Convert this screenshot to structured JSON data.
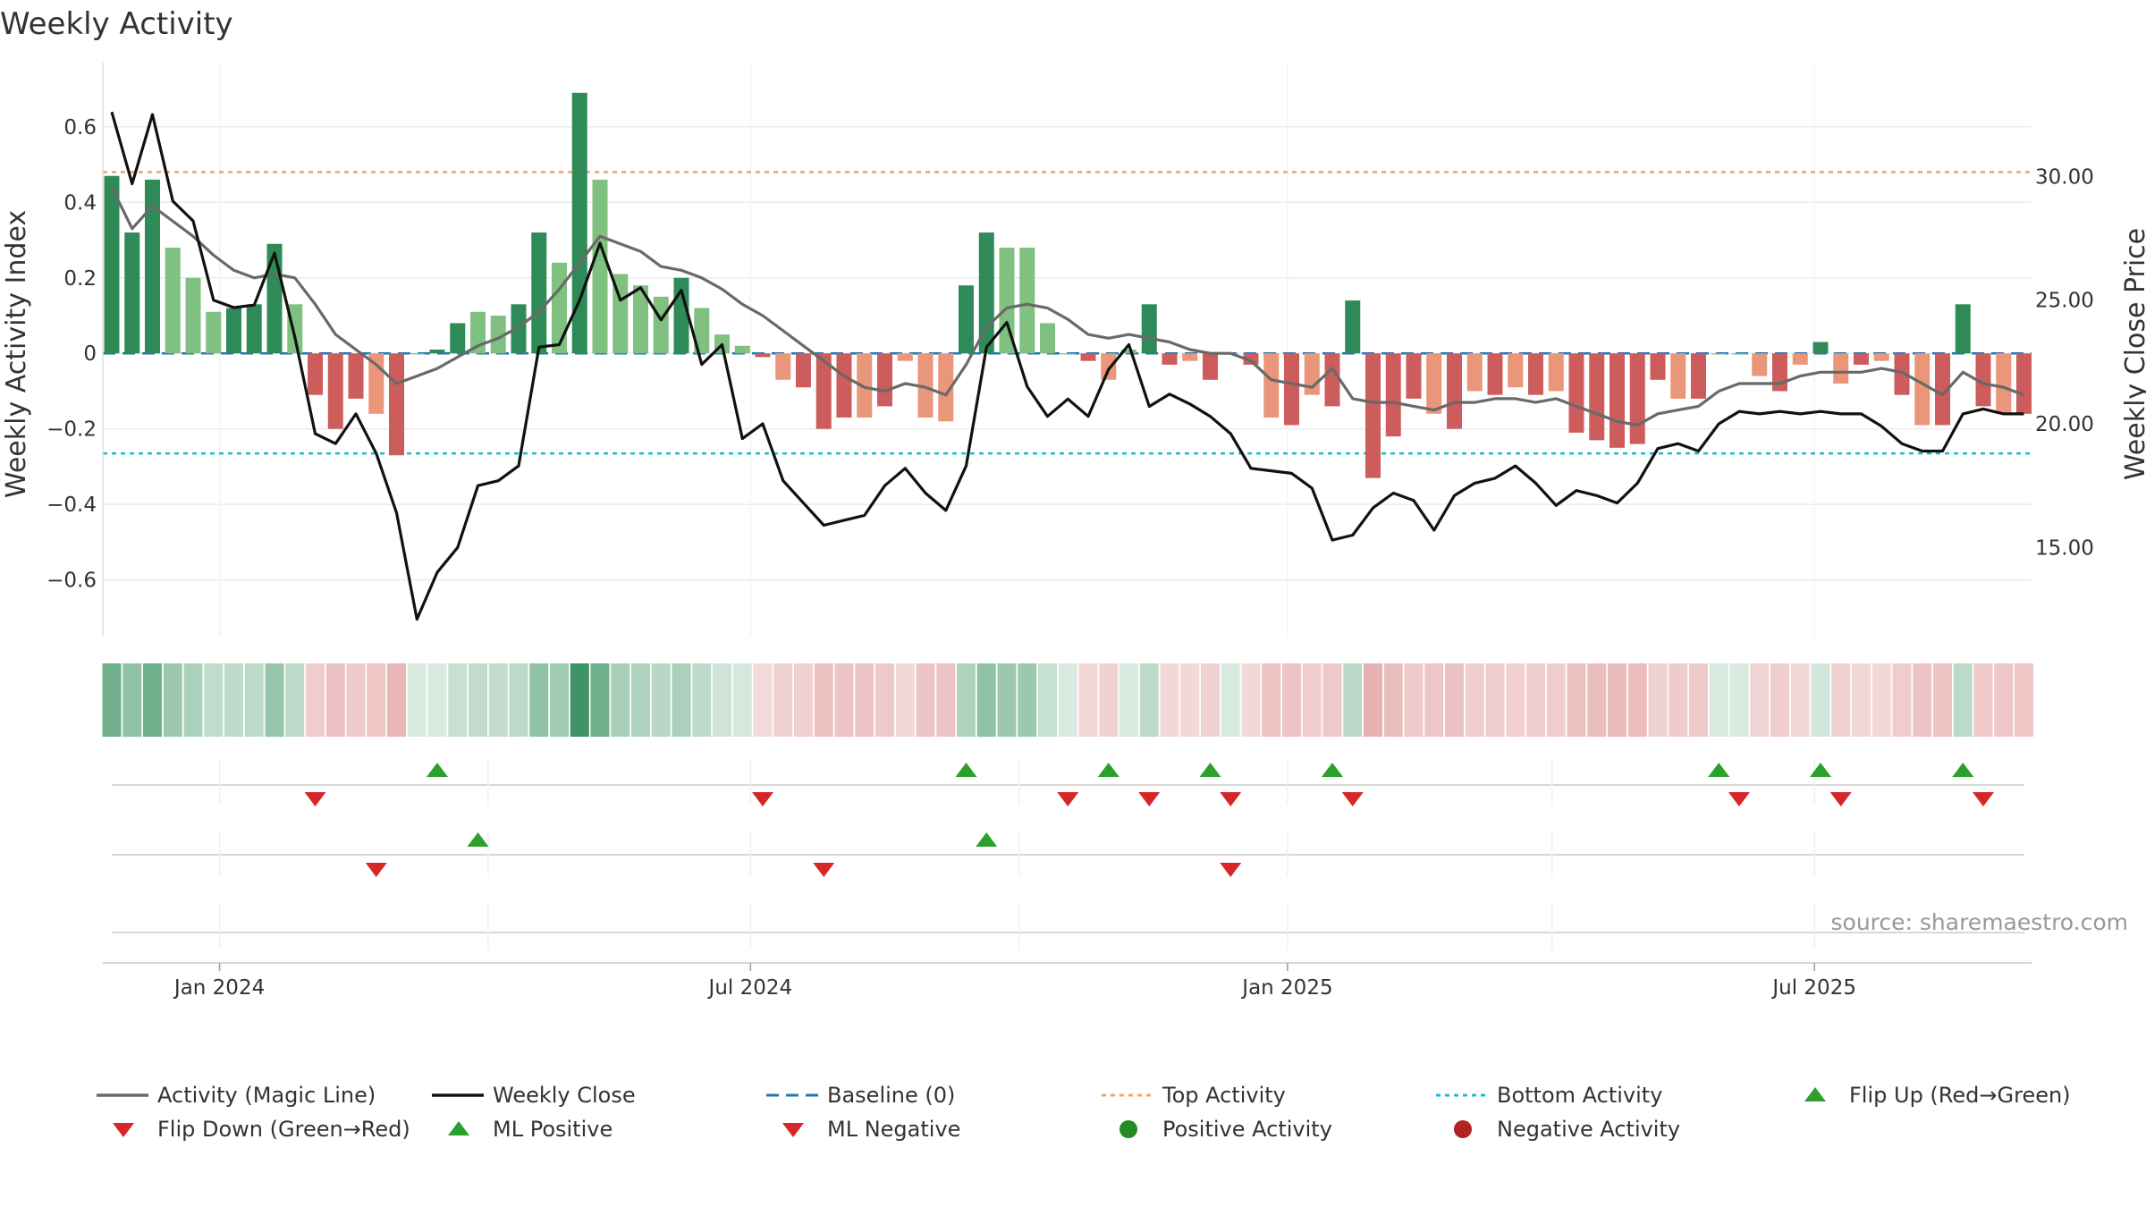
{
  "title": "Weekly Activity",
  "source": "source: sharemaestro.com",
  "chart_data": {
    "type": "bar",
    "title": "Weekly Activity",
    "ylabel": "Weekly Activity Index",
    "y2label": "Weekly Close Price",
    "ylim": [
      -0.75,
      0.77
    ],
    "y2lim": [
      11.4,
      34.6
    ],
    "yticks": [
      {
        "v": 0.6,
        "label": "0.6"
      },
      {
        "v": 0.4,
        "label": "0.4"
      },
      {
        "v": 0.2,
        "label": "0.2"
      },
      {
        "v": 0,
        "label": "0"
      },
      {
        "v": -0.2,
        "label": "−0.2"
      },
      {
        "v": -0.4,
        "label": "−0.4"
      },
      {
        "v": -0.6,
        "label": "−0.6"
      }
    ],
    "y2ticks": [
      {
        "v": 30,
        "label": "30.00"
      },
      {
        "v": 25,
        "label": "25.00"
      },
      {
        "v": 20,
        "label": "20.00"
      },
      {
        "v": 15,
        "label": "15.00"
      }
    ],
    "xticks": [
      {
        "i": 5.3,
        "label": "Jan 2024"
      },
      {
        "i": 31.4,
        "label": "Jul 2024"
      },
      {
        "i": 57.8,
        "label": "Jan 2025"
      },
      {
        "i": 83.7,
        "label": "Jul 2025"
      }
    ],
    "top_activity": 0.48,
    "bottom_activity": -0.265,
    "activity": [
      0.47,
      0.32,
      0.46,
      0.28,
      0.2,
      0.11,
      0.12,
      0.13,
      0.29,
      0.13,
      -0.11,
      -0.2,
      -0.12,
      -0.16,
      -0.27,
      0.0,
      0.01,
      0.08,
      0.11,
      0.1,
      0.13,
      0.32,
      0.24,
      0.69,
      0.46,
      0.21,
      0.18,
      0.15,
      0.2,
      0.12,
      0.05,
      0.02,
      -0.01,
      -0.07,
      -0.09,
      -0.2,
      -0.17,
      -0.17,
      -0.14,
      -0.02,
      -0.17,
      -0.18,
      0.18,
      0.32,
      0.28,
      0.28,
      0.08,
      0.0,
      -0.02,
      -0.07,
      0.01,
      0.13,
      -0.03,
      -0.02,
      -0.07,
      0.0,
      -0.03,
      -0.17,
      -0.19,
      -0.11,
      -0.14,
      0.14,
      -0.33,
      -0.22,
      -0.12,
      -0.16,
      -0.2,
      -0.1,
      -0.11,
      -0.09,
      -0.11,
      -0.1,
      -0.21,
      -0.23,
      -0.25,
      -0.24,
      -0.07,
      -0.12,
      -0.12,
      0.0,
      0.0,
      -0.06,
      -0.1,
      -0.03,
      0.03,
      -0.08,
      -0.03,
      -0.02,
      -0.11,
      -0.19,
      -0.19,
      0.13,
      -0.14,
      -0.16,
      -0.16
    ],
    "magic_line": [
      0.44,
      0.33,
      0.39,
      0.35,
      0.31,
      0.26,
      0.22,
      0.2,
      0.21,
      0.2,
      0.13,
      0.05,
      0.01,
      -0.03,
      -0.08,
      -0.06,
      -0.04,
      -0.01,
      0.02,
      0.04,
      0.07,
      0.11,
      0.17,
      0.24,
      0.31,
      0.29,
      0.27,
      0.23,
      0.22,
      0.2,
      0.17,
      0.13,
      0.1,
      0.06,
      0.02,
      -0.02,
      -0.06,
      -0.09,
      -0.1,
      -0.08,
      -0.09,
      -0.11,
      -0.03,
      0.07,
      0.12,
      0.13,
      0.12,
      0.09,
      0.05,
      0.04,
      0.05,
      0.04,
      0.03,
      0.01,
      0.0,
      0.0,
      -0.02,
      -0.07,
      -0.08,
      -0.09,
      -0.04,
      -0.12,
      -0.13,
      -0.13,
      -0.14,
      -0.15,
      -0.13,
      -0.13,
      -0.12,
      -0.12,
      -0.13,
      -0.12,
      -0.14,
      -0.16,
      -0.18,
      -0.19,
      -0.16,
      -0.15,
      -0.14,
      -0.1,
      -0.08,
      -0.08,
      -0.08,
      -0.06,
      -0.05,
      -0.05,
      -0.05,
      -0.04,
      -0.05,
      -0.08,
      -0.11,
      -0.05,
      -0.08,
      -0.09,
      -0.11
    ],
    "weekly_close": [
      32.6,
      29.7,
      32.5,
      29.0,
      28.2,
      25.0,
      24.7,
      24.8,
      26.9,
      23.5,
      19.6,
      19.2,
      20.4,
      18.8,
      16.4,
      12.1,
      14.0,
      15.0,
      17.5,
      17.7,
      18.3,
      23.1,
      23.2,
      25.0,
      27.3,
      25.0,
      25.5,
      24.2,
      25.4,
      22.4,
      23.2,
      19.4,
      20.0,
      17.7,
      16.8,
      15.9,
      16.1,
      16.3,
      17.5,
      18.2,
      17.2,
      16.5,
      18.3,
      23.1,
      24.1,
      21.5,
      20.3,
      21.0,
      20.3,
      22.2,
      23.2,
      20.7,
      21.2,
      20.8,
      20.3,
      19.6,
      18.2,
      18.1,
      18.0,
      17.4,
      15.3,
      15.5,
      16.6,
      17.2,
      16.9,
      15.7,
      17.1,
      17.6,
      17.8,
      18.3,
      17.6,
      16.7,
      17.3,
      17.1,
      16.8,
      17.6,
      19.0,
      19.2,
      18.9,
      20.0,
      20.5,
      20.4,
      20.5,
      20.4,
      20.5,
      20.4,
      20.4,
      19.9,
      19.2,
      18.9,
      18.9,
      20.4,
      20.6,
      20.4,
      20.4
    ],
    "signal_rows": [
      {
        "ups": [
          16,
          42,
          49,
          54,
          60,
          79,
          84,
          91
        ],
        "downs": [
          10,
          32,
          47,
          51,
          55,
          61,
          80,
          85,
          92
        ]
      },
      {
        "ups": [
          18,
          43
        ],
        "downs": [
          13,
          35,
          55
        ]
      }
    ],
    "colors": {
      "pos_strong": "#2e8b57",
      "pos_light": "#80c080",
      "neg_strong": "#cd5c5c",
      "neg_light": "#e9967a",
      "magic_line": "#696969",
      "weekly_close": "#111111",
      "baseline": "#1f77b4",
      "top": "#f4a460",
      "bottom": "#17becf",
      "flip_up": "#2ca02c",
      "flip_down": "#d62728",
      "pos_dot": "#228b22",
      "neg_dot": "#b22222"
    },
    "legend": [
      {
        "key": "magic",
        "label": "Activity (Magic Line)"
      },
      {
        "key": "close",
        "label": "Weekly Close"
      },
      {
        "key": "baseline",
        "label": "Baseline (0)"
      },
      {
        "key": "top",
        "label": "Top Activity"
      },
      {
        "key": "bottom",
        "label": "Bottom Activity"
      },
      {
        "key": "flipup",
        "label": "Flip Up (Red→Green)"
      },
      {
        "key": "flipdown",
        "label": "Flip Down (Green→Red)"
      },
      {
        "key": "mlpos",
        "label": "ML Positive"
      },
      {
        "key": "mlneg",
        "label": "ML Negative"
      },
      {
        "key": "posdot",
        "label": "Positive Activity"
      },
      {
        "key": "negdot",
        "label": "Negative Activity"
      }
    ]
  }
}
